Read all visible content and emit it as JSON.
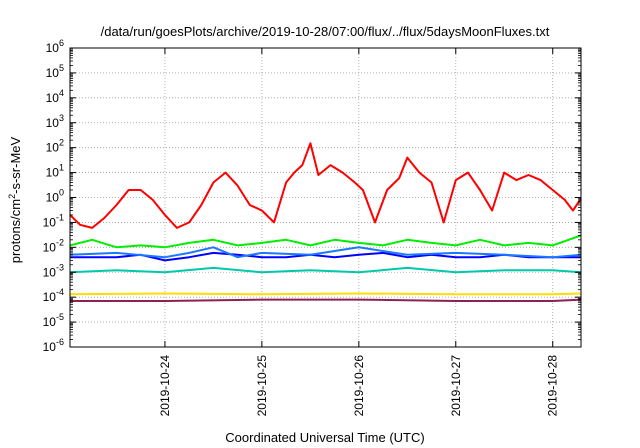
{
  "chart_data": {
    "type": "line",
    "title": "/data/run/goesPlots/archive/2019-10-28/07:00/flux/../flux/5daysMoonFluxes.txt",
    "xlabel": "Coordinated Universal Time (UTC)",
    "ylabel": "protons/cm2-s-sr-MeV",
    "ylabel_parts": {
      "main": "protons/cm",
      "sup": "2",
      "rest": "-s-sr-MeV"
    },
    "y_scale": "log",
    "ylim": [
      1e-06,
      1000000.0
    ],
    "y_ticks": [
      {
        "value": 1e-06,
        "base": "10",
        "exp": "-6"
      },
      {
        "value": 1e-05,
        "base": "10",
        "exp": "-5"
      },
      {
        "value": 0.0001,
        "base": "10",
        "exp": "-4"
      },
      {
        "value": 0.001,
        "base": "10",
        "exp": "-3"
      },
      {
        "value": 0.01,
        "base": "10",
        "exp": "-2"
      },
      {
        "value": 0.1,
        "base": "10",
        "exp": "-1"
      },
      {
        "value": 1.0,
        "base": "10",
        "exp": "0"
      },
      {
        "value": 10.0,
        "base": "10",
        "exp": "1"
      },
      {
        "value": 100.0,
        "base": "10",
        "exp": "2"
      },
      {
        "value": 1000.0,
        "base": "10",
        "exp": "3"
      },
      {
        "value": 10000.0,
        "base": "10",
        "exp": "4"
      },
      {
        "value": 100000.0,
        "base": "10",
        "exp": "5"
      },
      {
        "value": 1000000.0,
        "base": "10",
        "exp": "6"
      }
    ],
    "xlim": [
      "2019-10-23T00:30",
      "2019-10-28T07:00"
    ],
    "x_ticks": [
      "2019-10-24",
      "2019-10-25",
      "2019-10-26",
      "2019-10-27",
      "2019-10-28"
    ],
    "grid": true,
    "legend": "none",
    "series": [
      {
        "color": "#ff0000",
        "x": [
          "2019-10-23T00:30",
          "2019-10-23T03:00",
          "2019-10-23T06:00",
          "2019-10-23T09:00",
          "2019-10-23T12:00",
          "2019-10-23T15:00",
          "2019-10-23T18:00",
          "2019-10-23T21:00",
          "2019-10-24T00:00",
          "2019-10-24T03:00",
          "2019-10-24T06:00",
          "2019-10-24T09:00",
          "2019-10-24T12:00",
          "2019-10-24T15:00",
          "2019-10-24T18:00",
          "2019-10-24T21:00",
          "2019-10-25T00:00",
          "2019-10-25T03:00",
          "2019-10-25T06:00",
          "2019-10-25T08:00",
          "2019-10-25T10:00",
          "2019-10-25T12:00",
          "2019-10-25T14:00",
          "2019-10-25T17:00",
          "2019-10-25T20:00",
          "2019-10-25T23:00",
          "2019-10-26T01:00",
          "2019-10-26T04:00",
          "2019-10-26T07:00",
          "2019-10-26T10:00",
          "2019-10-26T12:00",
          "2019-10-26T15:00",
          "2019-10-26T18:00",
          "2019-10-26T21:00",
          "2019-10-27T00:00",
          "2019-10-27T03:00",
          "2019-10-27T06:00",
          "2019-10-27T09:00",
          "2019-10-27T12:00",
          "2019-10-27T15:00",
          "2019-10-27T18:00",
          "2019-10-27T21:00",
          "2019-10-28T00:00",
          "2019-10-28T03:00",
          "2019-10-28T05:00",
          "2019-10-28T07:00"
        ],
        "values": [
          0.2,
          0.08,
          0.06,
          0.15,
          0.5,
          2,
          2,
          0.8,
          0.2,
          0.06,
          0.1,
          0.5,
          4,
          10,
          3,
          0.5,
          0.3,
          0.1,
          4,
          10,
          20,
          150,
          8,
          20,
          10,
          4,
          2,
          0.1,
          2,
          6,
          40,
          10,
          4,
          0.1,
          5,
          10,
          2,
          0.3,
          10,
          5,
          8,
          5,
          2,
          0.8,
          0.3,
          0.9
        ]
      },
      {
        "color": "#00ee00",
        "x": [
          "2019-10-23T00:30",
          "2019-10-23T06:00",
          "2019-10-23T12:00",
          "2019-10-23T18:00",
          "2019-10-24T00:00",
          "2019-10-24T06:00",
          "2019-10-24T12:00",
          "2019-10-24T18:00",
          "2019-10-25T00:00",
          "2019-10-25T06:00",
          "2019-10-25T12:00",
          "2019-10-25T18:00",
          "2019-10-26T00:00",
          "2019-10-26T06:00",
          "2019-10-26T12:00",
          "2019-10-26T18:00",
          "2019-10-27T00:00",
          "2019-10-27T06:00",
          "2019-10-27T12:00",
          "2019-10-27T18:00",
          "2019-10-28T00:00",
          "2019-10-28T07:00"
        ],
        "values": [
          0.012,
          0.02,
          0.01,
          0.012,
          0.01,
          0.015,
          0.02,
          0.012,
          0.015,
          0.02,
          0.012,
          0.02,
          0.015,
          0.012,
          0.02,
          0.015,
          0.012,
          0.02,
          0.012,
          0.015,
          0.012,
          0.03
        ]
      },
      {
        "color": "#0000ff",
        "x": [
          "2019-10-23T00:30",
          "2019-10-23T06:00",
          "2019-10-23T12:00",
          "2019-10-23T18:00",
          "2019-10-24T00:00",
          "2019-10-24T06:00",
          "2019-10-24T12:00",
          "2019-10-24T18:00",
          "2019-10-25T00:00",
          "2019-10-25T06:00",
          "2019-10-25T12:00",
          "2019-10-25T18:00",
          "2019-10-26T00:00",
          "2019-10-26T06:00",
          "2019-10-26T12:00",
          "2019-10-26T18:00",
          "2019-10-27T00:00",
          "2019-10-27T06:00",
          "2019-10-27T12:00",
          "2019-10-27T18:00",
          "2019-10-28T00:00",
          "2019-10-28T07:00"
        ],
        "values": [
          0.004,
          0.004,
          0.004,
          0.005,
          0.003,
          0.004,
          0.006,
          0.005,
          0.004,
          0.004,
          0.005,
          0.004,
          0.005,
          0.006,
          0.004,
          0.005,
          0.004,
          0.004,
          0.005,
          0.004,
          0.004,
          0.004
        ]
      },
      {
        "color": "#1e78ff",
        "x": [
          "2019-10-23T00:30",
          "2019-10-23T12:00",
          "2019-10-24T00:00",
          "2019-10-24T06:00",
          "2019-10-24T12:00",
          "2019-10-24T18:00",
          "2019-10-25T00:00",
          "2019-10-25T12:00",
          "2019-10-26T00:00",
          "2019-10-26T12:00",
          "2019-10-27T00:00",
          "2019-10-27T12:00",
          "2019-10-28T00:00",
          "2019-10-28T07:00"
        ],
        "values": [
          0.005,
          0.006,
          0.004,
          0.006,
          0.01,
          0.004,
          0.006,
          0.005,
          0.01,
          0.005,
          0.006,
          0.005,
          0.004,
          0.005
        ]
      },
      {
        "color": "#00c8aa",
        "x": [
          "2019-10-23T00:30",
          "2019-10-23T12:00",
          "2019-10-24T00:00",
          "2019-10-24T12:00",
          "2019-10-25T00:00",
          "2019-10-25T12:00",
          "2019-10-26T00:00",
          "2019-10-26T12:00",
          "2019-10-27T00:00",
          "2019-10-27T12:00",
          "2019-10-28T00:00",
          "2019-10-28T07:00"
        ],
        "values": [
          0.001,
          0.0012,
          0.001,
          0.0015,
          0.001,
          0.0012,
          0.001,
          0.0015,
          0.001,
          0.0012,
          0.0012,
          0.001
        ]
      },
      {
        "color": "#ffdd00",
        "x": [
          "2019-10-23T00:30",
          "2019-10-24T00:00",
          "2019-10-25T00:00",
          "2019-10-26T00:00",
          "2019-10-27T00:00",
          "2019-10-28T00:00",
          "2019-10-28T07:00"
        ],
        "values": [
          0.00013,
          0.00014,
          0.00013,
          0.00014,
          0.00013,
          0.00013,
          0.00014
        ]
      },
      {
        "color": "#8b2252",
        "x": [
          "2019-10-23T00:30",
          "2019-10-24T00:00",
          "2019-10-25T00:00",
          "2019-10-26T00:00",
          "2019-10-27T00:00",
          "2019-10-28T00:00",
          "2019-10-28T07:00"
        ],
        "values": [
          7e-05,
          7e-05,
          8e-05,
          8e-05,
          7e-05,
          7e-05,
          8e-05
        ]
      }
    ]
  }
}
